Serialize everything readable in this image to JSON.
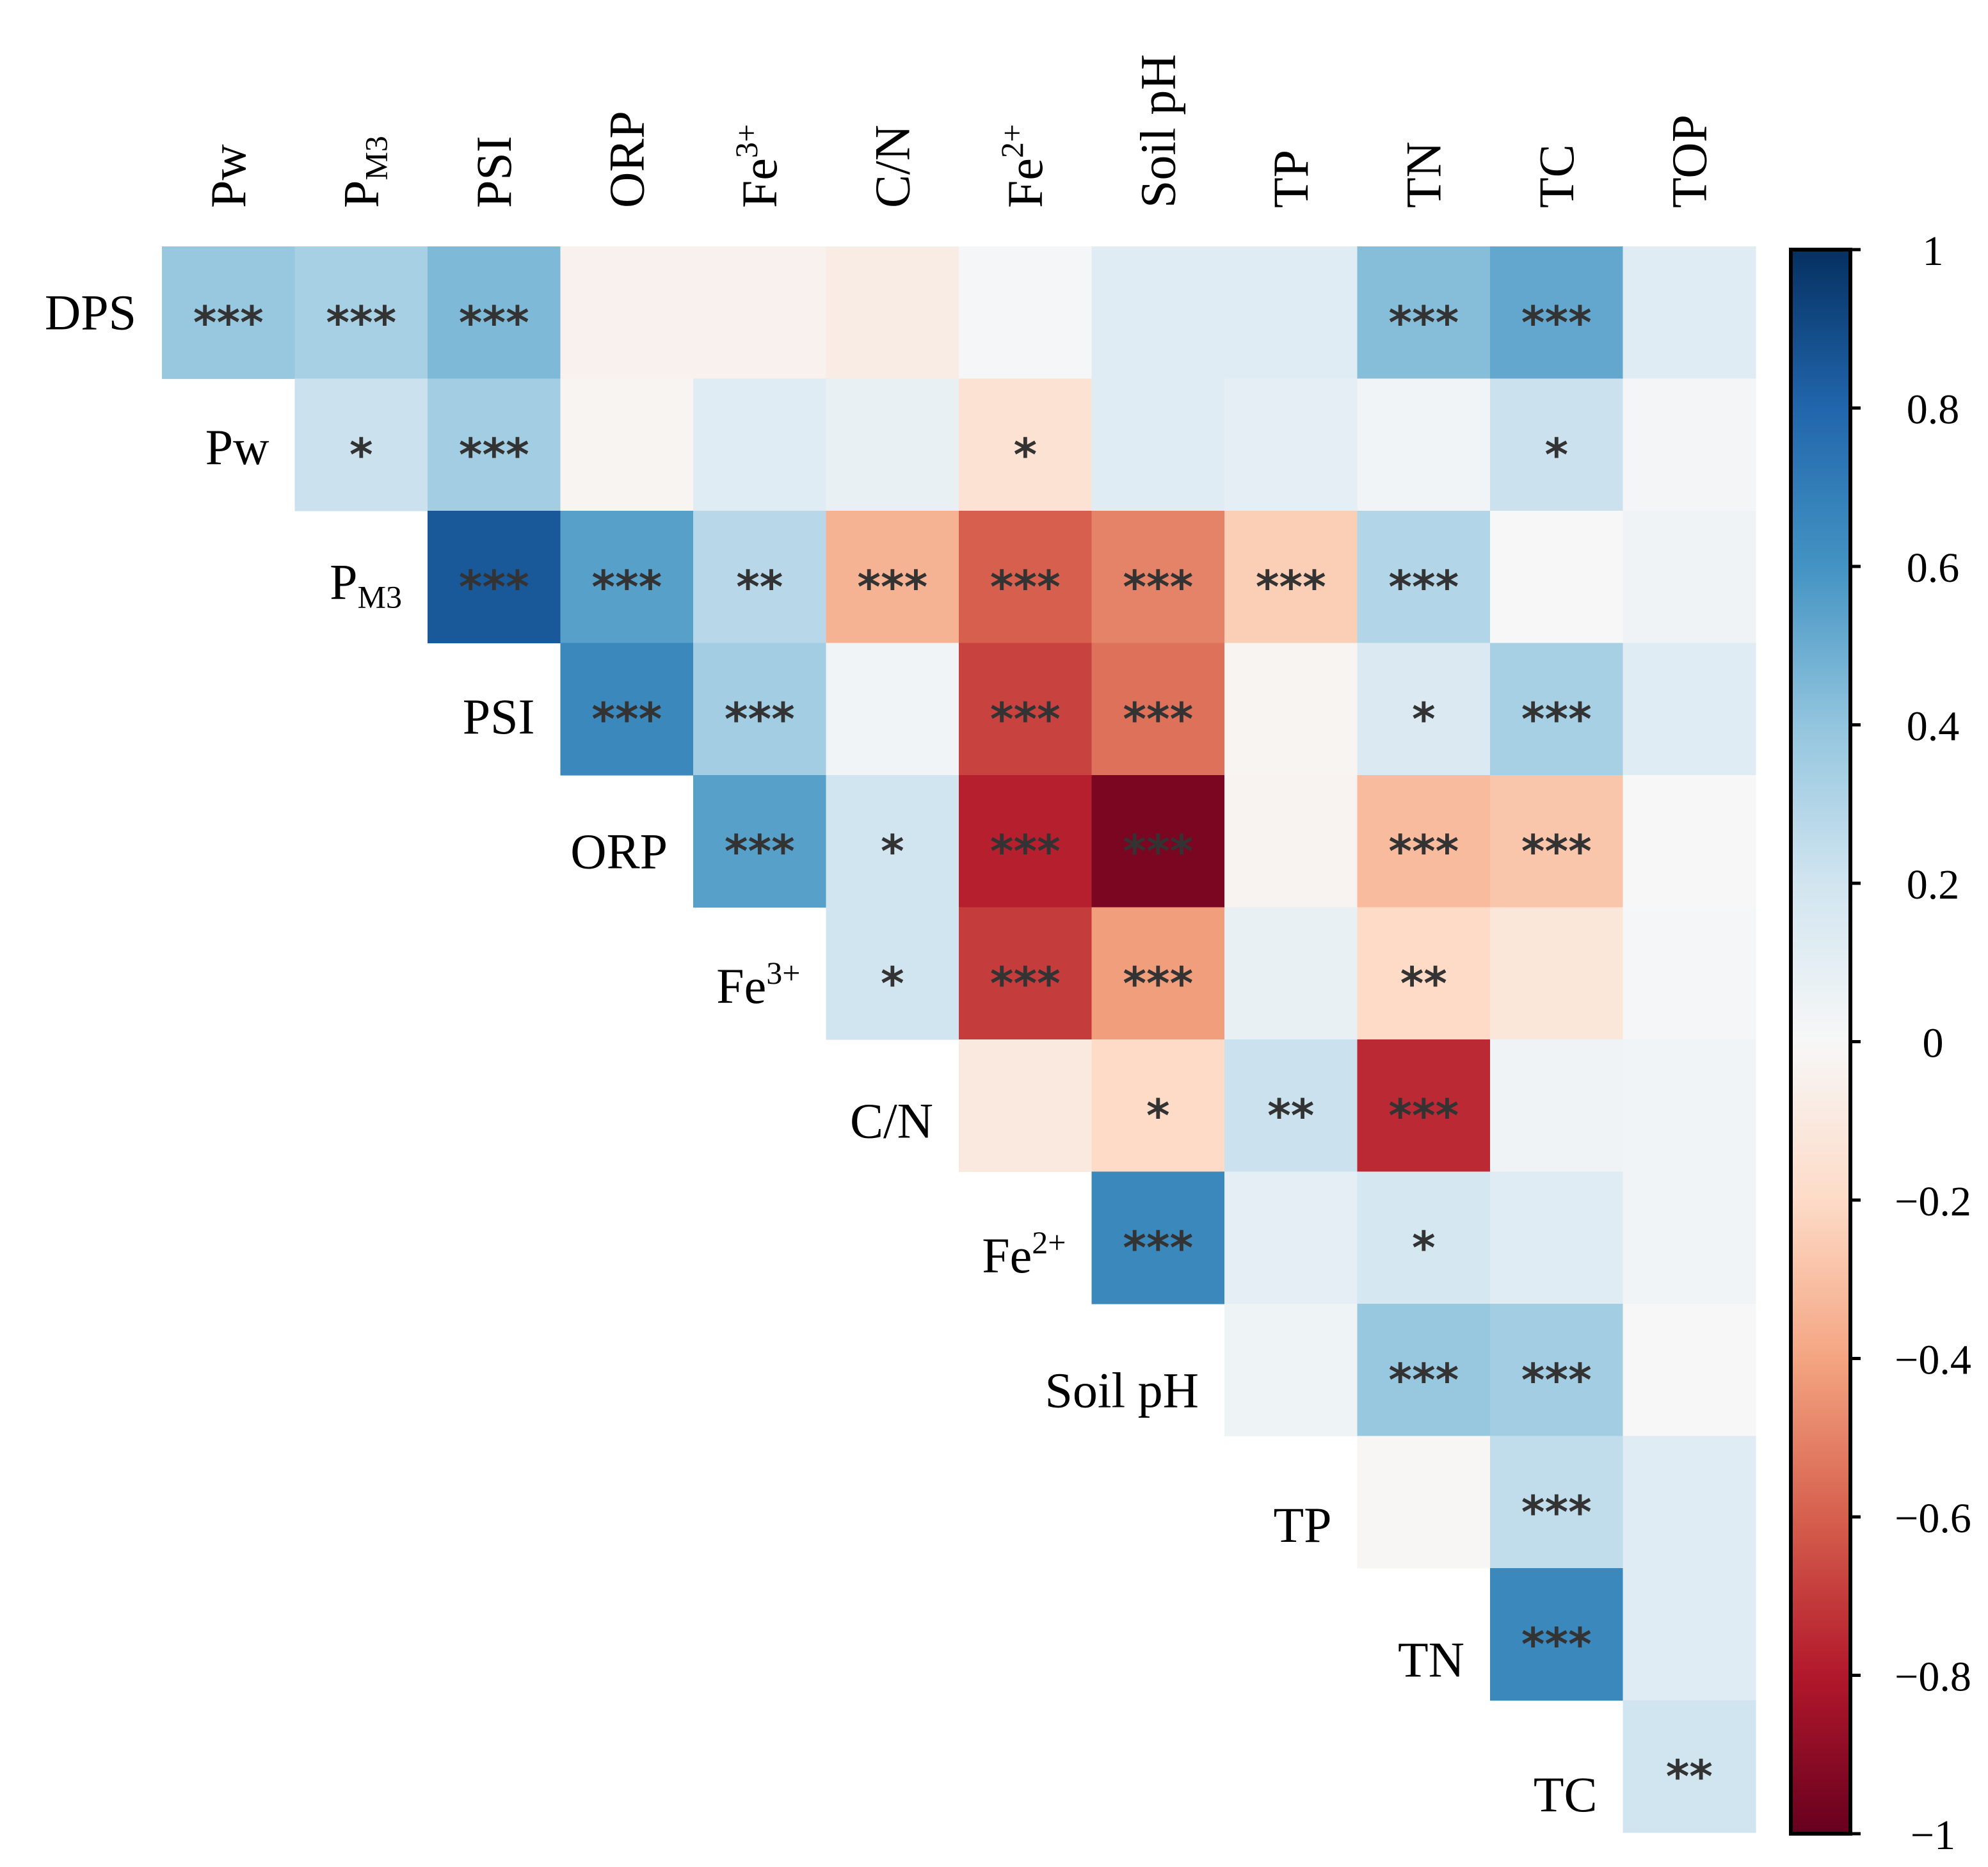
{
  "chart_data": {
    "type": "heatmap",
    "title": "",
    "columns": [
      {
        "main": "Pw",
        "sup": "",
        "sub": ""
      },
      {
        "main": "P",
        "sup": "",
        "sub": "M3"
      },
      {
        "main": "PSI",
        "sup": "",
        "sub": ""
      },
      {
        "main": "ORP",
        "sup": "",
        "sub": ""
      },
      {
        "main": "Fe",
        "sup": "3+",
        "sub": ""
      },
      {
        "main": "C/N",
        "sup": "",
        "sub": ""
      },
      {
        "main": "Fe",
        "sup": "2+",
        "sub": ""
      },
      {
        "main": "Soil pH",
        "sup": "",
        "sub": ""
      },
      {
        "main": "TP",
        "sup": "",
        "sub": ""
      },
      {
        "main": "TN",
        "sup": "",
        "sub": ""
      },
      {
        "main": "TC",
        "sup": "",
        "sub": ""
      },
      {
        "main": "TOP",
        "sup": "",
        "sub": ""
      }
    ],
    "rows": [
      {
        "main": "DPS",
        "sup": "",
        "sub": ""
      },
      {
        "main": "Pw",
        "sup": "",
        "sub": ""
      },
      {
        "main": "P",
        "sup": "",
        "sub": "M3"
      },
      {
        "main": "PSI",
        "sup": "",
        "sub": ""
      },
      {
        "main": "ORP",
        "sup": "",
        "sub": ""
      },
      {
        "main": "Fe",
        "sup": "3+",
        "sub": ""
      },
      {
        "main": "C/N",
        "sup": "",
        "sub": ""
      },
      {
        "main": "Fe",
        "sup": "2+",
        "sub": ""
      },
      {
        "main": "Soil pH",
        "sup": "",
        "sub": ""
      },
      {
        "main": "TP",
        "sup": "",
        "sub": ""
      },
      {
        "main": "TN",
        "sup": "",
        "sub": ""
      },
      {
        "main": "TC",
        "sup": "",
        "sub": ""
      }
    ],
    "values": [
      [
        0.38,
        0.33,
        0.45,
        -0.04,
        -0.04,
        -0.08,
        0.01,
        0.12,
        0.12,
        0.43,
        0.52,
        0.12
      ],
      [
        null,
        0.22,
        0.35,
        -0.02,
        0.12,
        0.08,
        -0.15,
        0.12,
        0.1,
        0.03,
        0.22,
        0.02
      ],
      [
        null,
        null,
        0.85,
        0.55,
        0.28,
        -0.35,
        -0.6,
        -0.5,
        -0.25,
        0.3,
        0.0,
        0.04
      ],
      [
        null,
        null,
        null,
        0.65,
        0.35,
        0.03,
        -0.68,
        -0.55,
        -0.02,
        0.15,
        0.33,
        0.12
      ],
      [
        null,
        null,
        null,
        null,
        0.55,
        0.2,
        -0.78,
        -0.95,
        -0.03,
        -0.32,
        -0.28,
        0.0
      ],
      [
        null,
        null,
        null,
        null,
        null,
        0.2,
        -0.7,
        -0.42,
        0.08,
        -0.2,
        -0.12,
        0.01
      ],
      [
        null,
        null,
        null,
        null,
        null,
        null,
        -0.1,
        -0.2,
        0.22,
        -0.75,
        0.04,
        0.03
      ],
      [
        null,
        null,
        null,
        null,
        null,
        null,
        null,
        0.65,
        0.1,
        0.18,
        0.12,
        0.03
      ],
      [
        null,
        null,
        null,
        null,
        null,
        null,
        null,
        null,
        0.05,
        0.38,
        0.35,
        0.0
      ],
      [
        null,
        null,
        null,
        null,
        null,
        null,
        null,
        null,
        null,
        -0.01,
        0.25,
        0.12
      ],
      [
        null,
        null,
        null,
        null,
        null,
        null,
        null,
        null,
        null,
        null,
        0.65,
        0.12
      ],
      [
        null,
        null,
        null,
        null,
        null,
        null,
        null,
        null,
        null,
        null,
        null,
        0.2
      ]
    ],
    "significance": [
      [
        "***",
        "***",
        "***",
        "",
        "",
        "",
        "",
        "",
        "",
        "***",
        "***",
        ""
      ],
      [
        null,
        "*",
        "***",
        "",
        "",
        "",
        "*",
        "",
        "",
        "",
        "*",
        ""
      ],
      [
        null,
        null,
        "***",
        "***",
        "**",
        "***",
        "***",
        "***",
        "***",
        "***",
        "",
        ""
      ],
      [
        null,
        null,
        null,
        "***",
        "***",
        "",
        "***",
        "***",
        "",
        "*",
        "***",
        ""
      ],
      [
        null,
        null,
        null,
        null,
        "***",
        "*",
        "***",
        "***",
        "",
        "***",
        "***",
        ""
      ],
      [
        null,
        null,
        null,
        null,
        null,
        "*",
        "***",
        "***",
        "",
        "**",
        "",
        ""
      ],
      [
        null,
        null,
        null,
        null,
        null,
        null,
        "",
        "*",
        "**",
        "***",
        "",
        ""
      ],
      [
        null,
        null,
        null,
        null,
        null,
        null,
        null,
        "***",
        "",
        "*",
        "",
        ""
      ],
      [
        null,
        null,
        null,
        null,
        null,
        null,
        null,
        null,
        "",
        "***",
        "***",
        ""
      ],
      [
        null,
        null,
        null,
        null,
        null,
        null,
        null,
        null,
        null,
        "",
        "***",
        ""
      ],
      [
        null,
        null,
        null,
        null,
        null,
        null,
        null,
        null,
        null,
        null,
        "***",
        ""
      ],
      [
        null,
        null,
        null,
        null,
        null,
        null,
        null,
        null,
        null,
        null,
        null,
        "**"
      ]
    ],
    "colorbar": {
      "range": [
        -1,
        1
      ],
      "ticks": [
        1,
        0.8,
        0.6,
        0.4,
        0.2,
        0,
        -0.2,
        -0.4,
        -0.6,
        -0.8,
        -1
      ],
      "tick_labels": [
        "1",
        "0.8",
        "0.6",
        "0.4",
        "0.2",
        "0",
        "−0.2",
        "−0.4",
        "−0.6",
        "−0.8",
        "−1"
      ],
      "colors": [
        "#67001f",
        "#b2182b",
        "#d6604d",
        "#f4a582",
        "#fddbc7",
        "#f7f7f7",
        "#d1e5f0",
        "#92c5de",
        "#4393c3",
        "#2166ac",
        "#053061"
      ]
    }
  }
}
